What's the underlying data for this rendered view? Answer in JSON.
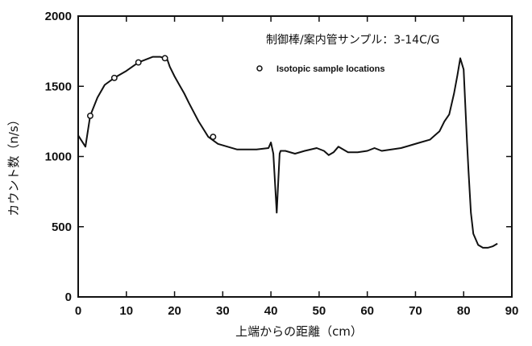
{
  "chart_data": {
    "type": "line",
    "title": "制御棒/案内管サンプル：3-14C/G",
    "xlabel": "上端からの距離（cm）",
    "ylabel": "カウント数（n/s）",
    "xlim": [
      0,
      90
    ],
    "ylim": [
      0,
      2000
    ],
    "x_ticks": [
      "0",
      "10",
      "20",
      "30",
      "40",
      "50",
      "60",
      "70",
      "80",
      "90"
    ],
    "y_ticks": [
      "0",
      "500",
      "1000",
      "1500",
      "2000"
    ],
    "grid": false,
    "legend": {
      "marker_label": "Isotopic sample locations",
      "placement": "top-right"
    },
    "series": [
      {
        "x": [
          0,
          1.5,
          2.5,
          4,
          5.5,
          7.5,
          10,
          12.5,
          14,
          15.5,
          17,
          18,
          18.5,
          19,
          20,
          21,
          22,
          23,
          25,
          27,
          29,
          31,
          33,
          35,
          37,
          39.5,
          40,
          40.5,
          41.2,
          41.8,
          42,
          43,
          45,
          47,
          49.5,
          51,
          52,
          53,
          54,
          55,
          56,
          58,
          60,
          61.5,
          63,
          65,
          67,
          69,
          71,
          73,
          74,
          75,
          76,
          77,
          78,
          78.7,
          79.3,
          80,
          80.7,
          81,
          81.5,
          82,
          83,
          84,
          85,
          86,
          87
        ],
        "y": [
          1150,
          1070,
          1290,
          1420,
          1510,
          1560,
          1610,
          1670,
          1690,
          1710,
          1710,
          1700,
          1690,
          1640,
          1570,
          1510,
          1450,
          1380,
          1250,
          1140,
          1090,
          1070,
          1050,
          1050,
          1050,
          1060,
          1100,
          1020,
          600,
          1020,
          1040,
          1040,
          1020,
          1040,
          1060,
          1040,
          1010,
          1030,
          1070,
          1050,
          1030,
          1030,
          1040,
          1060,
          1040,
          1050,
          1060,
          1080,
          1100,
          1120,
          1150,
          1180,
          1250,
          1300,
          1450,
          1580,
          1700,
          1620,
          1100,
          900,
          600,
          450,
          370,
          350,
          350,
          360,
          380
        ]
      }
    ],
    "sample_points": [
      {
        "x": 2.5,
        "y": 1290
      },
      {
        "x": 7.5,
        "y": 1560
      },
      {
        "x": 12.5,
        "y": 1670
      },
      {
        "x": 18,
        "y": 1700
      },
      {
        "x": 28,
        "y": 1140
      }
    ]
  }
}
